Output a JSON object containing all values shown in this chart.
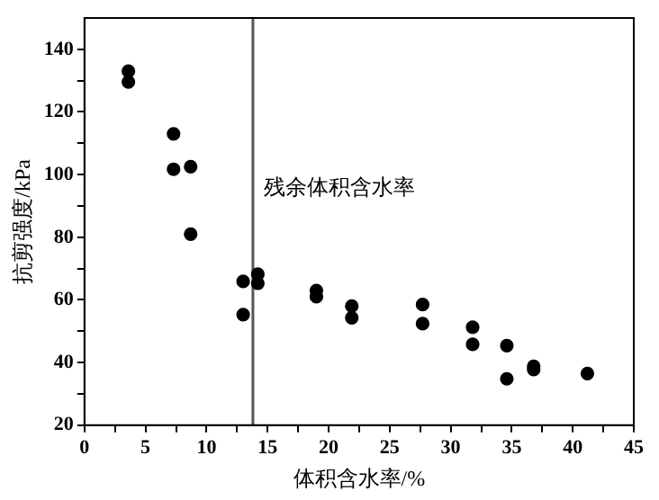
{
  "chart_data": {
    "type": "scatter",
    "xlabel": "体积含水率/%",
    "ylabel": "抗剪强度/kPa",
    "x": [
      3.6,
      3.6,
      7.3,
      7.3,
      8.7,
      8.7,
      13.0,
      13.0,
      14.2,
      14.2,
      19.0,
      19.0,
      21.9,
      21.9,
      27.7,
      27.7,
      31.8,
      31.8,
      34.6,
      34.6,
      36.8,
      36.8,
      41.2
    ],
    "series": [
      {
        "color": "#000000",
        "values": [
          133,
          129.6,
          113,
          101.7,
          102.5,
          81,
          65.9,
          55.3,
          68.2,
          65.3,
          63,
          61,
          58,
          54.3,
          58.5,
          52.4,
          51.3,
          45.8,
          45.4,
          34.8,
          38.8,
          37.8,
          36.5
        ]
      }
    ],
    "xlim": [
      0,
      45
    ],
    "ylim": [
      20,
      150
    ],
    "xticks": [
      0,
      {
        "value": 2.5,
        "label": null
      },
      5,
      {
        "value": 7.5,
        "label": null
      },
      10,
      {
        "value": 12.5,
        "label": null
      },
      15,
      {
        "value": 17.5,
        "label": null
      },
      20,
      {
        "value": 22.5,
        "label": null
      },
      25,
      {
        "value": 27.5,
        "label": null
      },
      30,
      {
        "value": 32.5,
        "label": null
      },
      35,
      {
        "value": 37.5,
        "label": null
      },
      40,
      {
        "value": 42.5,
        "label": null
      },
      45
    ],
    "yticks": [
      20,
      {
        "value": 30,
        "label": null
      },
      40,
      {
        "value": 50,
        "label": null
      },
      60,
      {
        "value": 70,
        "label": null
      },
      80,
      {
        "value": 90,
        "label": null
      },
      100,
      {
        "value": 110,
        "label": null
      },
      120,
      {
        "value": 130,
        "label": null
      },
      140
    ],
    "ref_lines": [
      {
        "axis": "x",
        "value": 13.8,
        "label": "残余体积含水率",
        "color": "#555555"
      }
    ],
    "grid": false,
    "legend": false,
    "marker": "circle"
  }
}
